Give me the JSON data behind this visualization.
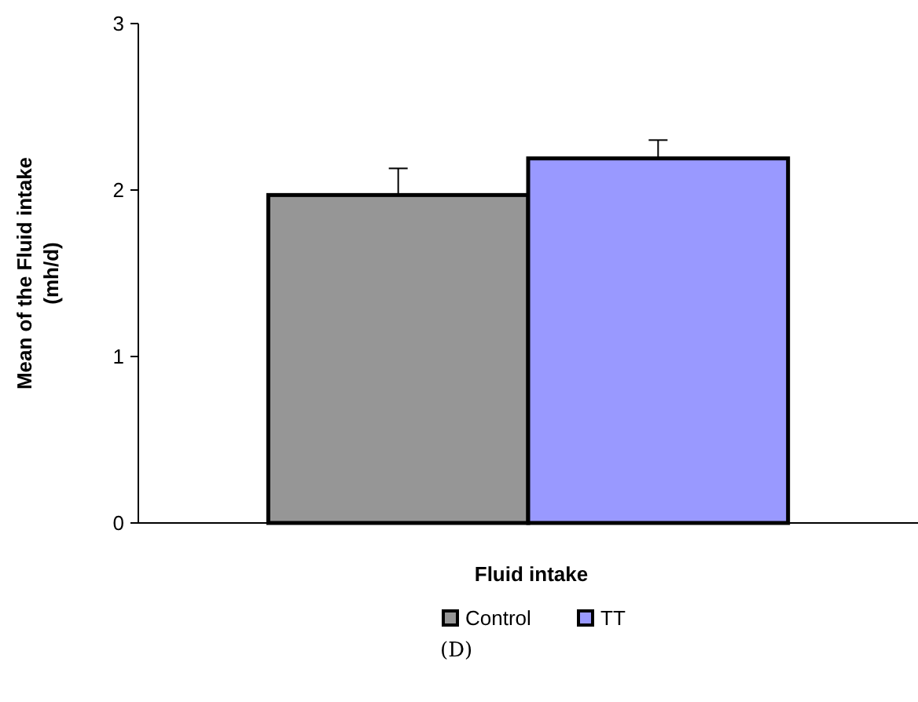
{
  "chart_data": {
    "type": "bar",
    "xlabel": "Fluid intake",
    "ylabel": "Mean of the Fluid intake (mh/d)",
    "categories": [
      null
    ],
    "series": [
      {
        "name": "Control",
        "color": "#969696",
        "values": [
          1.97
        ],
        "errors": [
          [
            1.97,
            2.13
          ]
        ]
      },
      {
        "name": "TT",
        "color": "#9999ff",
        "values": [
          2.19
        ],
        "errors": [
          [
            2.19,
            2.3
          ]
        ]
      }
    ],
    "ylim": [
      0,
      3
    ],
    "yticks": [
      0,
      1,
      2,
      3
    ],
    "grid": false,
    "legend": "bottom",
    "annotations": [
      "(D)"
    ]
  }
}
